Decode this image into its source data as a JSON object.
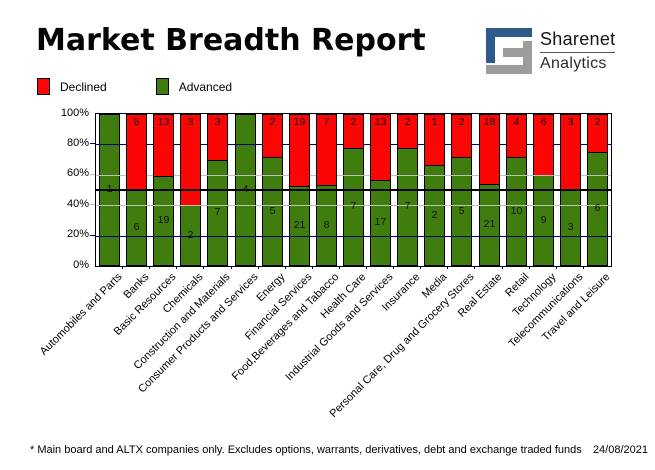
{
  "title": "Market Breadth Report",
  "logo": {
    "line1": "Sharenet",
    "line2": "Analytics",
    "blue": "#2f5a8c",
    "gray": "#9c9c9c"
  },
  "legend": [
    {
      "label": "Declined",
      "color": "#fb0505"
    },
    {
      "label": "Advanced",
      "color": "#3f7e0e"
    }
  ],
  "footer": {
    "note": "* Main board and ALTX companies only. Excludes options, warrants, derivatives, debt and exchange traded funds",
    "date": "24/08/2021"
  },
  "chart_data": {
    "type": "bar",
    "stacked": true,
    "stack_mode": "percent",
    "title": "Market Breadth Report",
    "categories": [
      "Automobiles and Parts",
      "Banks",
      "Basic Resources",
      "Chemicals",
      "Construction and Materials",
      "Consumer Products and Services",
      "Energy",
      "Financial Services",
      "Food,Beverages and Tabacco",
      "Health Care",
      "Industrial Goods and Services",
      "Insurance",
      "Media",
      "Personal Care, Drug and Grocery Stores",
      "Real Estate",
      "Retail",
      "Technology",
      "Telecommunications",
      "Travel and Leisure"
    ],
    "series": [
      {
        "name": "Advanced",
        "color": "#3f7e0e",
        "values": [
          1,
          6,
          19,
          2,
          7,
          4,
          5,
          21,
          8,
          7,
          17,
          7,
          2,
          5,
          21,
          10,
          9,
          3,
          6
        ]
      },
      {
        "name": "Declined",
        "color": "#fb0505",
        "values": [
          0,
          6,
          13,
          3,
          3,
          0,
          2,
          19,
          7,
          2,
          13,
          2,
          1,
          2,
          18,
          4,
          6,
          3,
          2
        ]
      }
    ],
    "y_ticks": [
      "100%",
      "80%",
      "60%",
      "40%",
      "20%",
      "0%"
    ],
    "ylim": [
      0,
      100
    ],
    "gridlines": [
      {
        "y": 80,
        "color": "#00007d"
      },
      {
        "y": 60,
        "color": "#c0c0c0"
      },
      {
        "y": 40,
        "color": "#c0c0c0"
      },
      {
        "y": 20,
        "color": "#00007d"
      },
      {
        "y": 50,
        "color": "#000000",
        "bold": true
      }
    ],
    "legend_position": "top-left"
  }
}
